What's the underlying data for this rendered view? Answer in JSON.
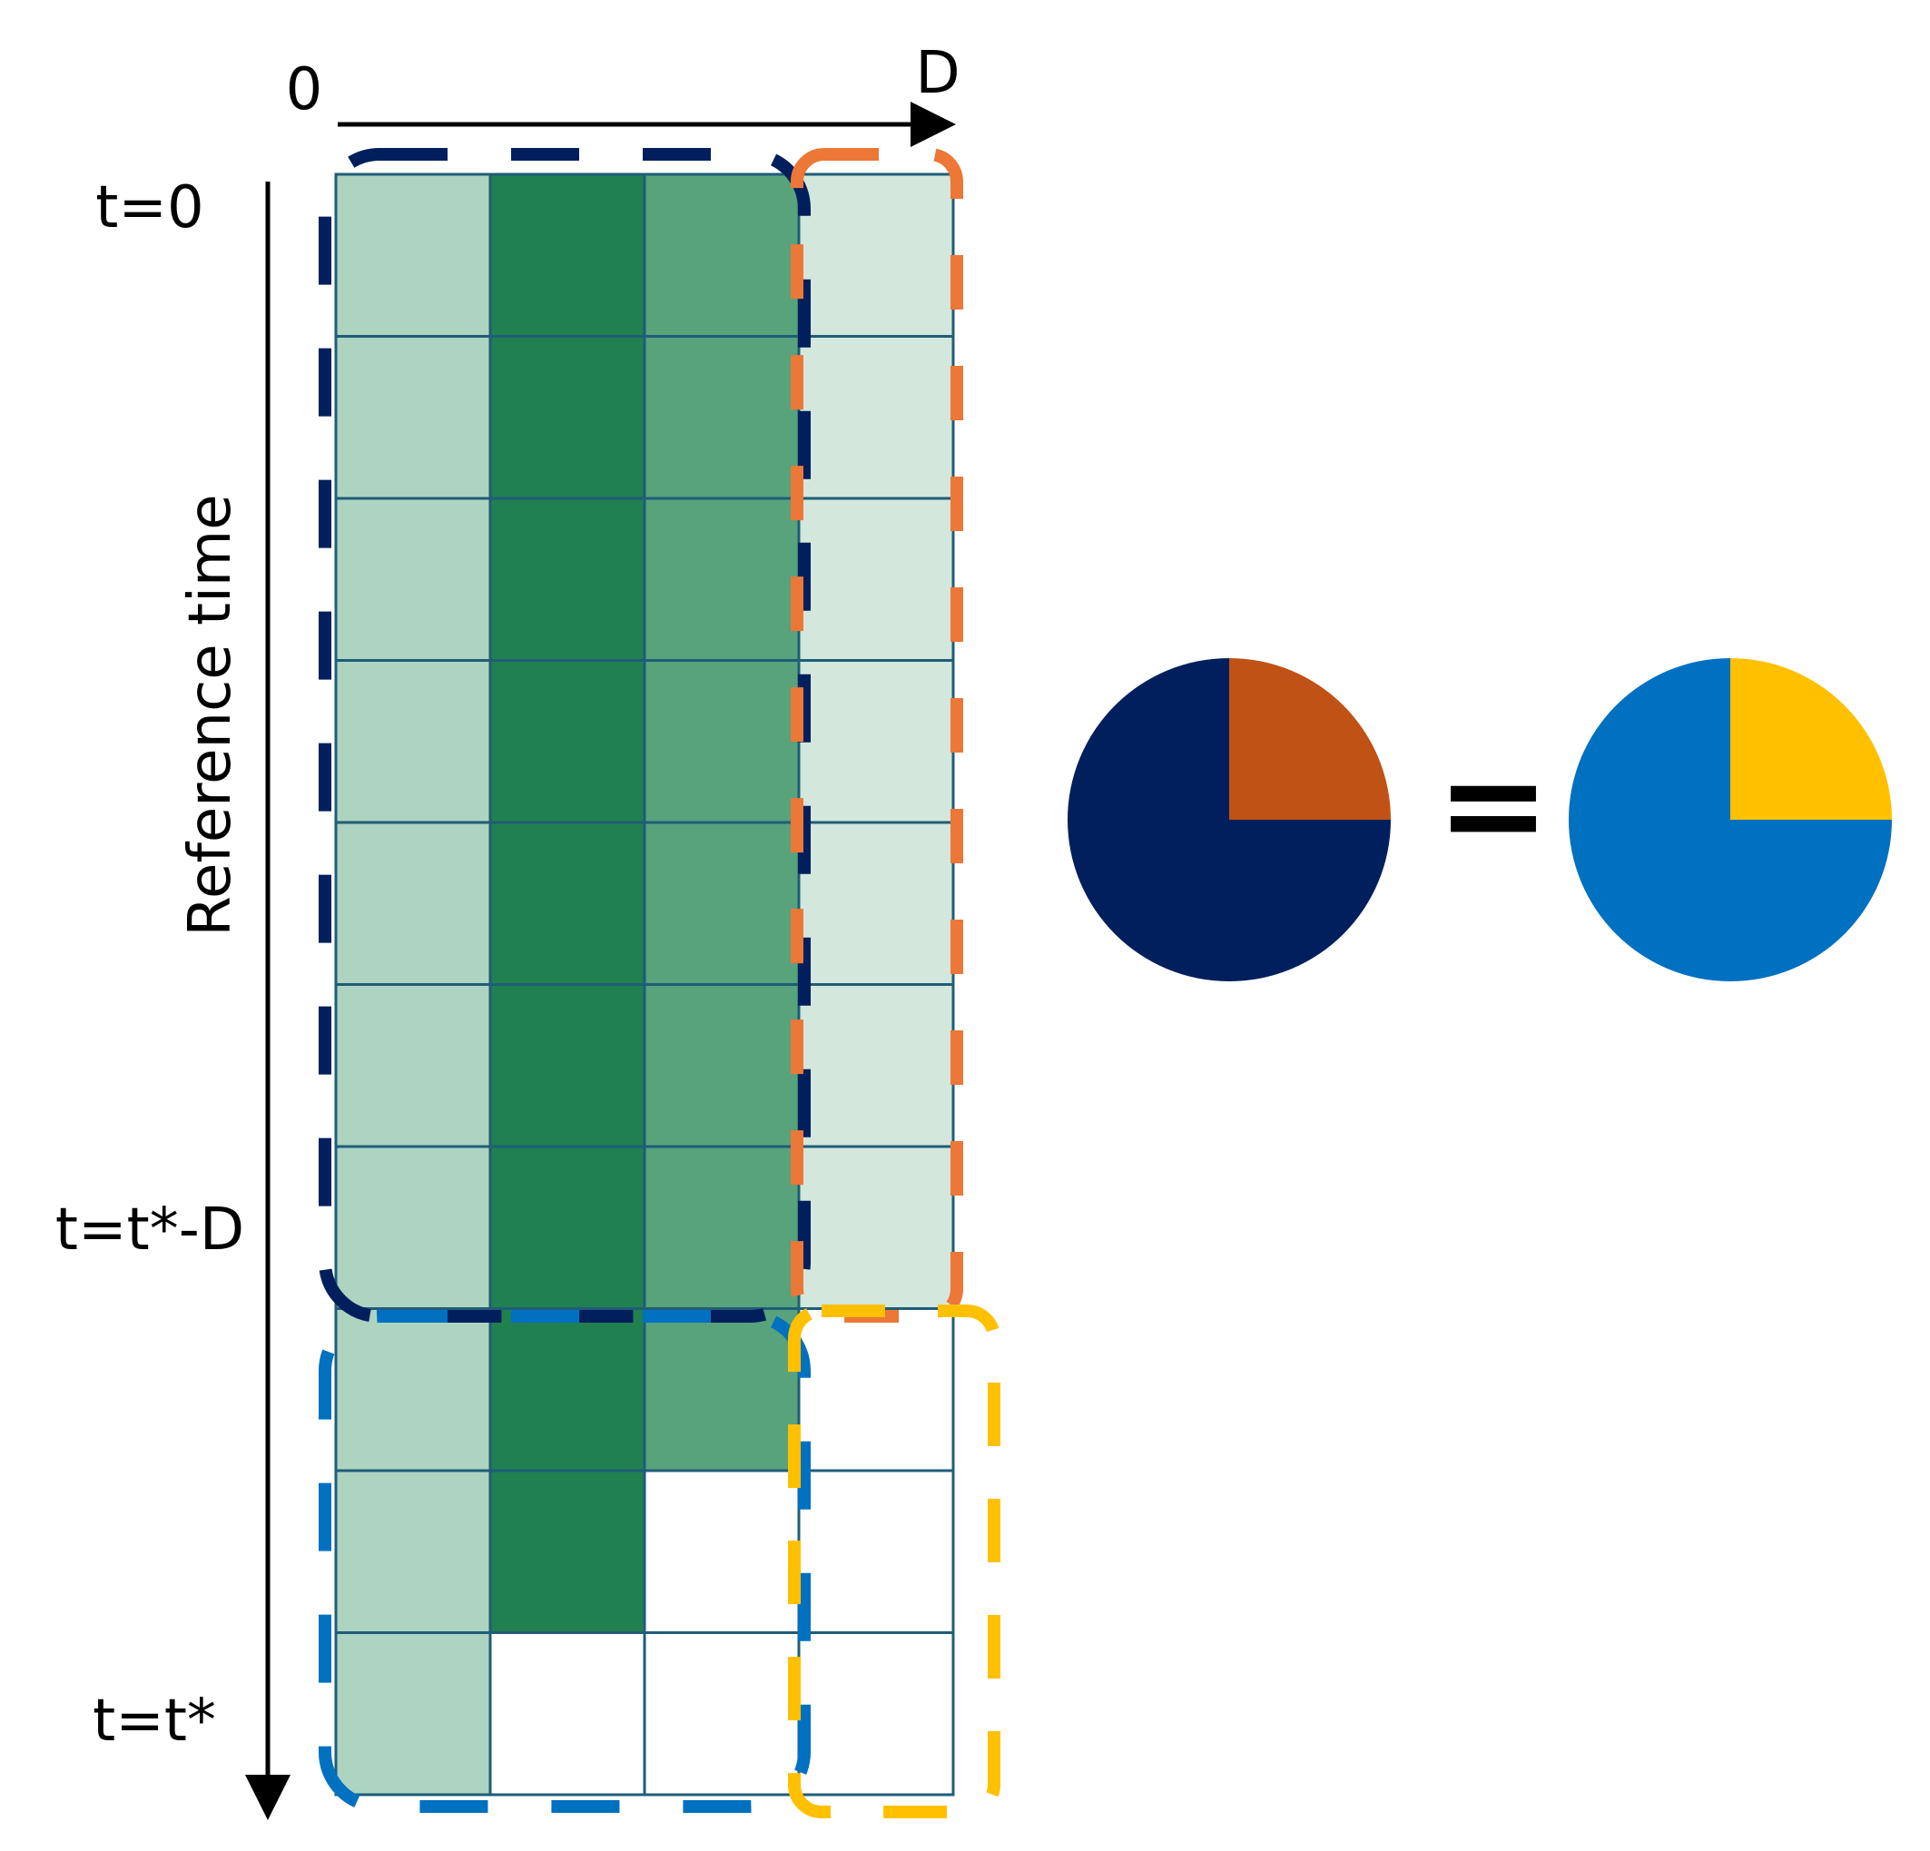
{
  "axis_top": {
    "start_label": "0",
    "end_label": "D"
  },
  "axis_left": {
    "title": "Reference time",
    "tick_labels": [
      "t=0",
      "t=t*-D",
      "t=t*"
    ]
  },
  "equation": {
    "equals_sign": "="
  },
  "grid": {
    "rows": 10,
    "cols": 4,
    "cells": [
      [
        "light",
        "dark",
        "medium",
        "pale"
      ],
      [
        "light",
        "dark",
        "medium",
        "pale"
      ],
      [
        "light",
        "dark",
        "medium",
        "pale"
      ],
      [
        "light",
        "dark",
        "medium",
        "pale"
      ],
      [
        "light",
        "dark",
        "medium",
        "pale"
      ],
      [
        "light",
        "dark",
        "medium",
        "pale"
      ],
      [
        "light",
        "dark",
        "medium",
        "pale"
      ],
      [
        "light",
        "dark",
        "medium",
        "empty"
      ],
      [
        "light",
        "dark",
        "empty",
        "empty"
      ],
      [
        "light",
        "empty",
        "empty",
        "empty"
      ]
    ]
  },
  "colors": {
    "light": "#add3c1",
    "dark": "#218050",
    "medium": "#58a27c",
    "pale": "#d3e7dc",
    "empty": "#ffffff",
    "grid_line": "#1f5d78",
    "axis": "#000000",
    "navy": "#001f5c",
    "orange_dash": "#ec7737",
    "blue": "#0070c0",
    "yellow": "#ffc000",
    "rust": "#c05215"
  },
  "pies": [
    {
      "name": "left",
      "slices": [
        {
          "fraction": 0.25,
          "color_key": "rust"
        },
        {
          "fraction": 0.75,
          "color_key": "navy"
        }
      ]
    },
    {
      "name": "right",
      "slices": [
        {
          "fraction": 0.25,
          "color_key": "yellow"
        },
        {
          "fraction": 0.75,
          "color_key": "blue"
        }
      ]
    }
  ]
}
